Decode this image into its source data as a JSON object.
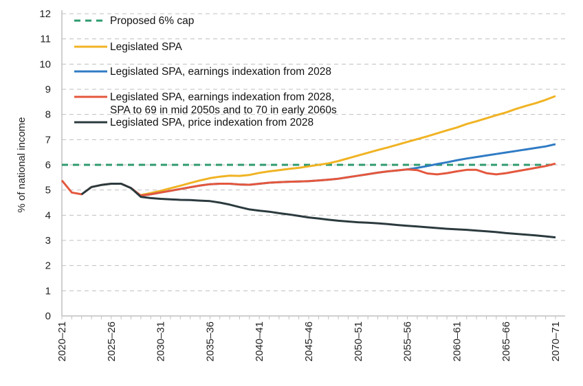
{
  "chart_data": {
    "type": "line",
    "title": "",
    "xlabel": "",
    "ylabel": "% of national income",
    "ylim": [
      0,
      12
    ],
    "yticks": [
      0,
      1,
      2,
      3,
      4,
      5,
      6,
      7,
      8,
      9,
      10,
      11,
      12
    ],
    "grid": "horizontal dashed",
    "legend_placement": "top-left",
    "x_start_year": 2020,
    "x_tick_labels": [
      "2020–21",
      "2025–26",
      "2030–31",
      "2035–36",
      "2040–41",
      "2045–46",
      "2050–51",
      "2055–56",
      "2060–61",
      "2065–66",
      "2070–71"
    ],
    "x": [
      "2020–21",
      "2021–22",
      "2022–23",
      "2023–24",
      "2024–25",
      "2025–26",
      "2026–27",
      "2027–28",
      "2028–29",
      "2029–30",
      "2030–31",
      "2031–32",
      "2032–33",
      "2033–34",
      "2034–35",
      "2035–36",
      "2036–37",
      "2037–38",
      "2038–39",
      "2039–40",
      "2040–41",
      "2041–42",
      "2042–43",
      "2043–44",
      "2044–45",
      "2045–46",
      "2046–47",
      "2047–48",
      "2048–49",
      "2049–50",
      "2050–51",
      "2051–52",
      "2052–53",
      "2053–54",
      "2054–55",
      "2055–56",
      "2056–57",
      "2057–58",
      "2058–59",
      "2059–60",
      "2060–61",
      "2061–62",
      "2062–63",
      "2063–64",
      "2064–65",
      "2065–66",
      "2066–67",
      "2067–68",
      "2068–69",
      "2069–70",
      "2070–71"
    ],
    "series": [
      {
        "name": "Proposed 6% cap",
        "color": "#2e9a6e",
        "dashed": true,
        "values": [
          6,
          6,
          6,
          6,
          6,
          6,
          6,
          6,
          6,
          6,
          6,
          6,
          6,
          6,
          6,
          6,
          6,
          6,
          6,
          6,
          6,
          6,
          6,
          6,
          6,
          6,
          6,
          6,
          6,
          6,
          6,
          6,
          6,
          6,
          6,
          6,
          6,
          6,
          6,
          6,
          6,
          6,
          6,
          6,
          6,
          6,
          6,
          6,
          6,
          6,
          6
        ]
      },
      {
        "name": "Legislated SPA",
        "color": "#f0b323",
        "values": [
          null,
          null,
          null,
          null,
          null,
          null,
          null,
          null,
          4.8,
          4.88,
          4.97,
          5.07,
          5.17,
          5.28,
          5.38,
          5.47,
          5.53,
          5.57,
          5.56,
          5.6,
          5.68,
          5.74,
          5.79,
          5.84,
          5.88,
          5.94,
          6.0,
          6.06,
          6.15,
          6.26,
          6.37,
          6.48,
          6.59,
          6.69,
          6.8,
          6.91,
          7.02,
          7.13,
          7.25,
          7.37,
          7.48,
          7.62,
          7.73,
          7.85,
          7.97,
          8.08,
          8.22,
          8.34,
          8.45,
          8.58,
          8.73
        ]
      },
      {
        "name": "Legislated SPA, earnings indexation from 2028",
        "color": "#2f7bc4",
        "values": [
          null,
          null,
          null,
          null,
          null,
          null,
          null,
          null,
          4.78,
          4.83,
          4.9,
          4.97,
          5.04,
          5.11,
          5.18,
          5.23,
          5.25,
          5.25,
          5.22,
          5.21,
          5.25,
          5.29,
          5.31,
          5.33,
          5.34,
          5.35,
          5.38,
          5.41,
          5.45,
          5.51,
          5.57,
          5.63,
          5.69,
          5.74,
          5.78,
          5.82,
          5.88,
          5.95,
          6.03,
          6.1,
          6.18,
          6.25,
          6.31,
          6.37,
          6.43,
          6.49,
          6.55,
          6.61,
          6.67,
          6.73,
          6.82
        ]
      },
      {
        "name": "Legislated SPA, earnings indexation from 2028, SPA to 69 in mid 2050s and to 70 in early 2060s",
        "name_lines": [
          "Legislated SPA, earnings indexation from 2028,",
          "SPA to 69 in mid 2050s and to 70 in early 2060s"
        ],
        "color": "#e4573d",
        "values": [
          5.38,
          4.9,
          4.83,
          5.12,
          5.2,
          5.25,
          5.25,
          5.08,
          4.78,
          4.83,
          4.9,
          4.97,
          5.04,
          5.11,
          5.18,
          5.23,
          5.25,
          5.25,
          5.22,
          5.21,
          5.25,
          5.29,
          5.31,
          5.33,
          5.34,
          5.35,
          5.38,
          5.41,
          5.45,
          5.51,
          5.57,
          5.63,
          5.69,
          5.74,
          5.78,
          5.82,
          5.79,
          5.66,
          5.62,
          5.67,
          5.74,
          5.8,
          5.8,
          5.67,
          5.62,
          5.67,
          5.74,
          5.81,
          5.88,
          5.95,
          6.05
        ]
      },
      {
        "name": "Legislated SPA, price indexation from 2028",
        "color": "#2b3a3e",
        "values": [
          null,
          null,
          4.83,
          5.12,
          5.2,
          5.25,
          5.25,
          5.08,
          4.73,
          4.68,
          4.65,
          4.63,
          4.61,
          4.6,
          4.58,
          4.56,
          4.5,
          4.42,
          4.32,
          4.23,
          4.18,
          4.14,
          4.08,
          4.03,
          3.97,
          3.91,
          3.87,
          3.82,
          3.78,
          3.75,
          3.72,
          3.7,
          3.68,
          3.65,
          3.61,
          3.58,
          3.55,
          3.52,
          3.49,
          3.46,
          3.44,
          3.42,
          3.39,
          3.36,
          3.33,
          3.29,
          3.26,
          3.23,
          3.2,
          3.16,
          3.12
        ]
      }
    ]
  }
}
